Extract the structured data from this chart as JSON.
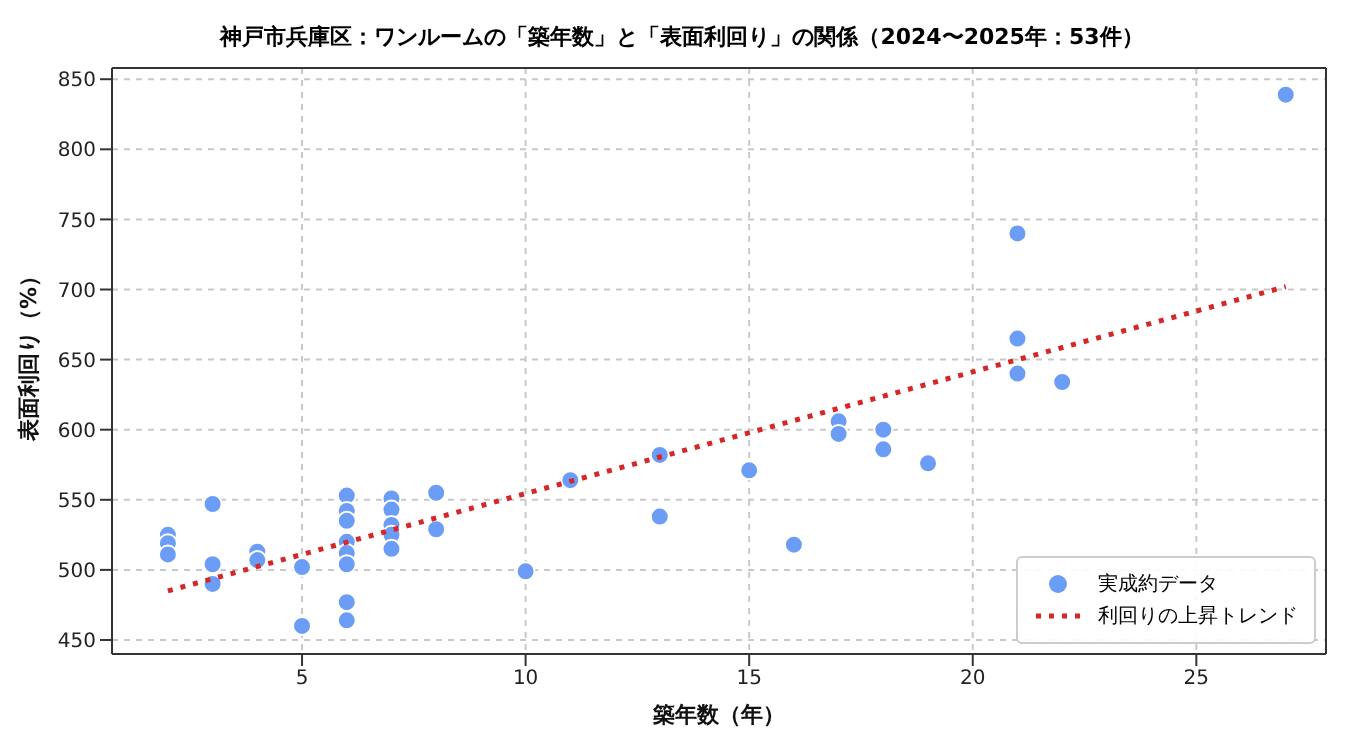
{
  "chart_data": {
    "type": "scatter",
    "title": "神戸市兵庫区：ワンルームの「築年数」と「表面利回り」の関係（2024〜2025年：53件）",
    "xlabel": "築年数（年）",
    "ylabel": "表面利回り（%）",
    "series": [
      {
        "name": "実成約データ",
        "type": "scatter",
        "color": "#6b9cf6",
        "marker": "circle",
        "x": [
          2,
          2,
          2,
          3,
          3,
          3,
          4,
          4,
          5,
          5,
          6,
          6,
          6,
          6,
          6,
          6,
          6,
          6,
          7,
          7,
          7,
          7,
          7,
          8,
          8,
          10,
          11,
          13,
          13,
          15,
          16,
          17,
          17,
          18,
          18,
          19,
          21,
          21,
          21,
          22,
          27
        ],
        "values": [
          525,
          519,
          511,
          547,
          504,
          490,
          513,
          507,
          502,
          460,
          553,
          542,
          535,
          520,
          512,
          504,
          477,
          464,
          551,
          543,
          532,
          525,
          515,
          555,
          529,
          499,
          564,
          582,
          538,
          571,
          518,
          606,
          597,
          600,
          586,
          576,
          740,
          665,
          640,
          634,
          839
        ]
      },
      {
        "name": "利回りの上昇トレンド",
        "type": "line",
        "color": "#d62728",
        "line_style": "dotted",
        "marker": "none",
        "x": [
          2,
          27
        ],
        "values": [
          485,
          702
        ]
      }
    ],
    "xlim": [
      0.75,
      27.9
    ],
    "xticks": [
      5,
      10,
      15,
      20,
      25
    ],
    "ylim": [
      440,
      858
    ],
    "yticks": [
      450,
      500,
      550,
      600,
      650,
      700,
      750,
      800,
      850
    ],
    "grid": true,
    "legend": "bottom right"
  }
}
